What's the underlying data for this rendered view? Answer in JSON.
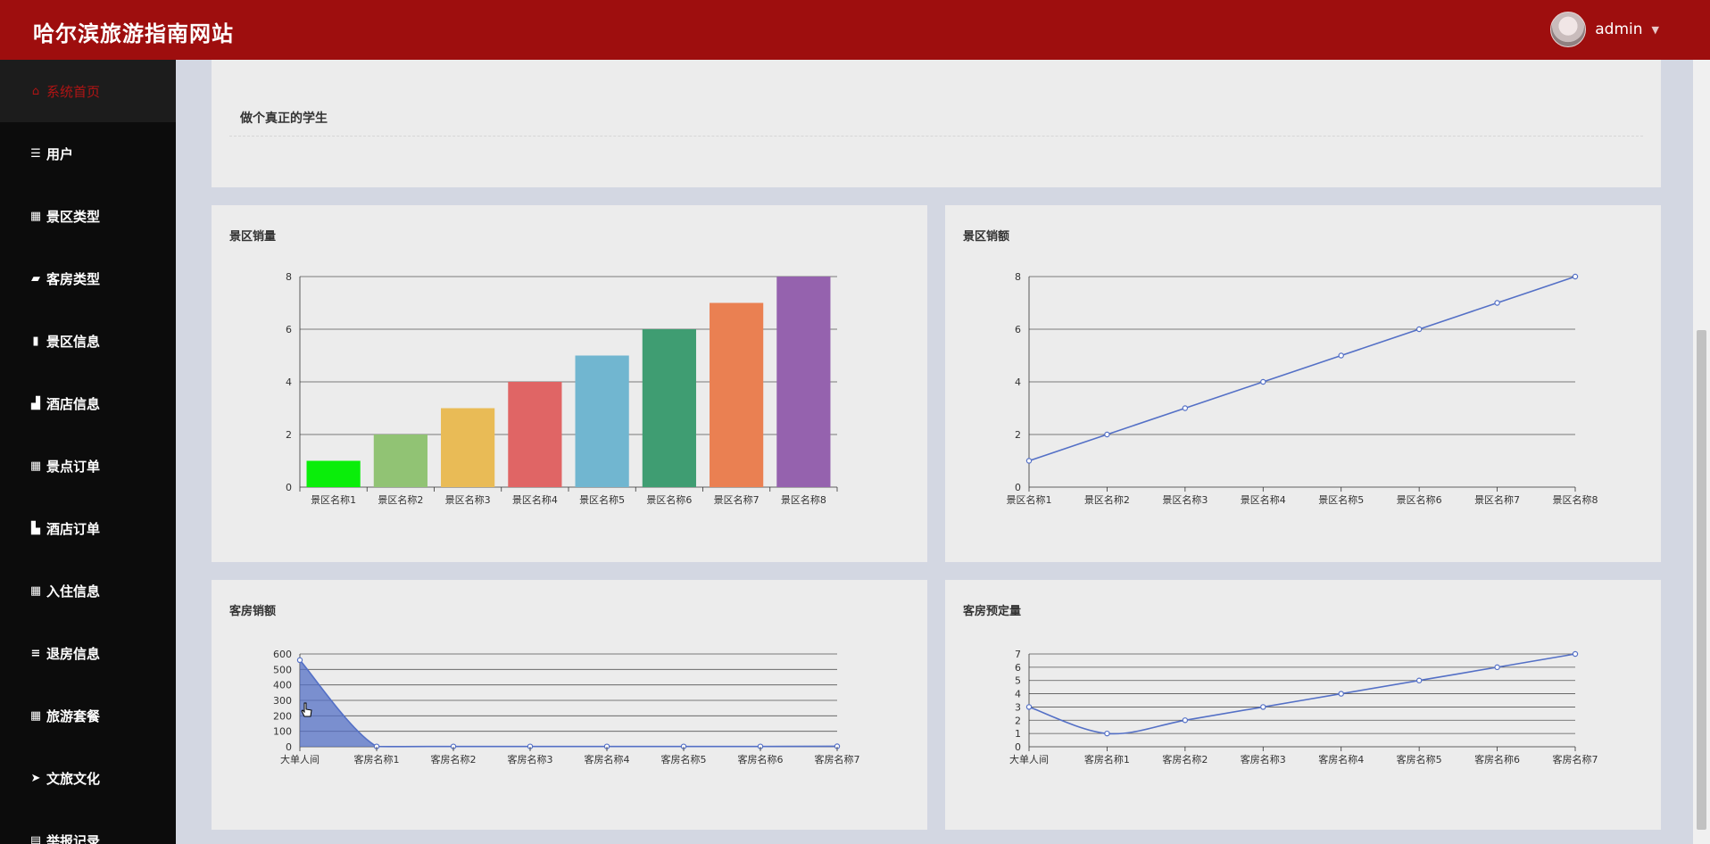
{
  "header": {
    "app_title": "哈尔滨旅游指南网站",
    "user_name": "admin",
    "background_color": "#9e0e0e"
  },
  "sidebar": {
    "items": [
      {
        "label": "系统首页",
        "icon": "home-icon",
        "active": true
      },
      {
        "label": "用户",
        "icon": "list-icon"
      },
      {
        "label": "景区类型",
        "icon": "grid-icon"
      },
      {
        "label": "客房类型",
        "icon": "briefcase-icon"
      },
      {
        "label": "景区信息",
        "icon": "book-icon"
      },
      {
        "label": "酒店信息",
        "icon": "bar-chart-icon"
      },
      {
        "label": "景点订单",
        "icon": "grid-icon"
      },
      {
        "label": "酒店订单",
        "icon": "thumbs-up-icon"
      },
      {
        "label": "入住信息",
        "icon": "table-icon"
      },
      {
        "label": "退房信息",
        "icon": "sliders-icon"
      },
      {
        "label": "旅游套餐",
        "icon": "grid-icon"
      },
      {
        "label": "文旅文化",
        "icon": "send-icon"
      },
      {
        "label": "举报记录",
        "icon": "clipboard-icon"
      }
    ]
  },
  "notice": {
    "text": "做个真正的学生"
  },
  "chart_data": [
    {
      "type": "bar",
      "title": "景区销量",
      "categories": [
        "景区名称1",
        "景区名称2",
        "景区名称3",
        "景区名称4",
        "景区名称5",
        "景区名称6",
        "景区名称7",
        "景区名称8"
      ],
      "values": [
        1,
        2,
        3,
        4,
        5,
        6,
        7,
        8
      ],
      "colors": [
        "#0aee0a",
        "#91c374",
        "#e9bb56",
        "#e06565",
        "#71b6d0",
        "#3f9d72",
        "#ea8052",
        "#9562ae"
      ],
      "ylim": [
        0,
        8
      ],
      "yticks": [
        0,
        2,
        4,
        6,
        8
      ],
      "grid": true
    },
    {
      "type": "line",
      "title": "景区销额",
      "categories": [
        "景区名称1",
        "景区名称2",
        "景区名称3",
        "景区名称4",
        "景区名称5",
        "景区名称6",
        "景区名称7",
        "景区名称8"
      ],
      "values": [
        1,
        2,
        3,
        4,
        5,
        6,
        7,
        8
      ],
      "color": "#5470c6",
      "ylim": [
        0,
        8
      ],
      "yticks": [
        0,
        2,
        4,
        6,
        8
      ],
      "grid": true
    },
    {
      "type": "area",
      "title": "客房销额",
      "categories": [
        "大单人间",
        "客房名称1",
        "客房名称2",
        "客房名称3",
        "客房名称4",
        "客房名称5",
        "客房名称6",
        "客房名称7"
      ],
      "values": [
        560,
        2,
        2,
        2,
        2,
        2,
        2,
        3
      ],
      "color": "#5470c6",
      "ylim": [
        0,
        600
      ],
      "yticks": [
        0,
        100,
        200,
        300,
        400,
        500,
        600
      ],
      "grid": true
    },
    {
      "type": "line",
      "title": "客房预定量",
      "categories": [
        "大单人间",
        "客房名称1",
        "客房名称2",
        "客房名称3",
        "客房名称4",
        "客房名称5",
        "客房名称6",
        "客房名称7"
      ],
      "values": [
        3,
        1,
        2,
        3,
        4,
        5,
        6,
        7
      ],
      "color": "#5470c6",
      "ylim": [
        0,
        7
      ],
      "yticks": [
        0,
        1,
        2,
        3,
        4,
        5,
        6,
        7
      ],
      "grid": true
    }
  ]
}
